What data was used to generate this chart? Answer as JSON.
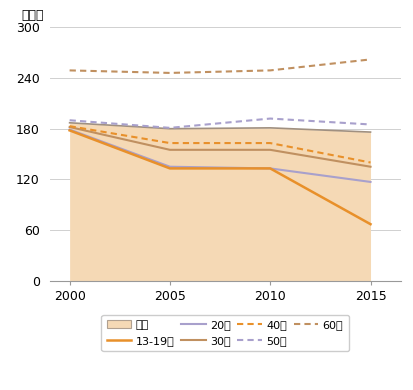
{
  "years": [
    2000,
    2005,
    2010,
    2015
  ],
  "zentai": [
    187,
    180,
    181,
    176
  ],
  "age_13_19": [
    178,
    133,
    133,
    67
  ],
  "age_20": [
    179,
    135,
    133,
    117
  ],
  "age_30": [
    182,
    155,
    155,
    135
  ],
  "age_40": [
    183,
    163,
    163,
    140
  ],
  "age_50": [
    190,
    181,
    192,
    185
  ],
  "age_60": [
    249,
    246,
    249,
    262
  ],
  "ylabel": "（分）",
  "ylim": [
    0,
    300
  ],
  "yticks": [
    0,
    60,
    120,
    180,
    240,
    300
  ],
  "xticks": [
    2000,
    2005,
    2010,
    2015
  ],
  "fill_color": "#f5d9b5",
  "color_zentai_line": "#a09080",
  "color_13_19": "#e8902a",
  "color_20": "#a8a0cc",
  "color_30": "#c09060",
  "color_40": "#e8902a",
  "color_50": "#a8a0cc",
  "color_60": "#c09060",
  "bg_color": "#ffffff",
  "grid_color": "#d0d0d0",
  "legend_labels": [
    "全体",
    "13-19歳",
    "20代",
    "30代",
    "40代",
    "50代",
    "60代"
  ]
}
